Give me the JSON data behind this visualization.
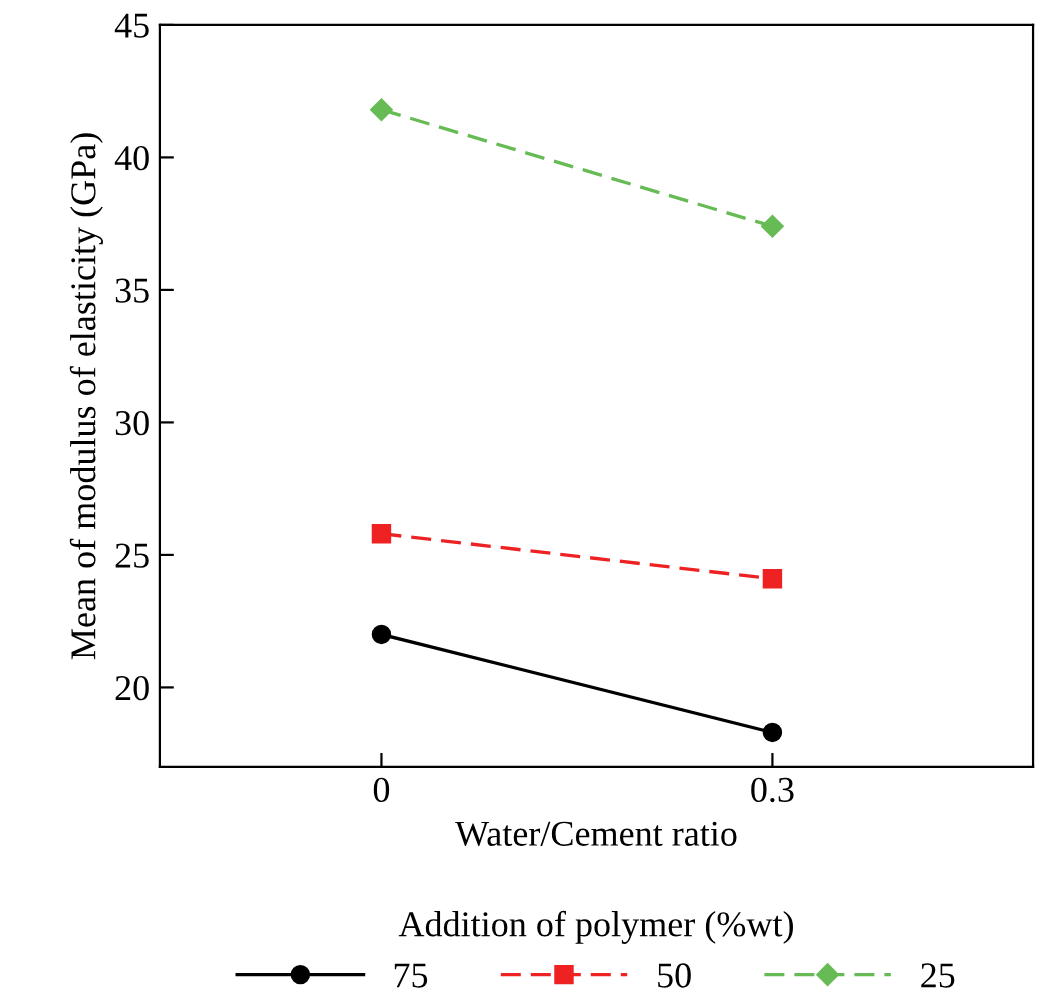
{
  "chart_data": {
    "type": "line",
    "xlabel": "Water/Cement ratio",
    "ylabel": "Mean of modulus of elasticity (GPa)",
    "legend_title": "Addition of polymer (%wt)",
    "x": [
      0,
      0.3
    ],
    "xlim": [
      -0.17,
      0.5
    ],
    "xticks": [
      0,
      0.3
    ],
    "ylim": [
      17,
      45
    ],
    "yticks": [
      20,
      25,
      30,
      35,
      40,
      45
    ],
    "grid": false,
    "legend": "bottom",
    "series": [
      {
        "name": "75",
        "color": "#000000",
        "values": [
          22.0,
          18.3
        ],
        "marker": "circle",
        "line_style": "solid"
      },
      {
        "name": "50",
        "color": "#ee2222",
        "values": [
          25.8,
          24.1
        ],
        "marker": "square",
        "line_style": "dashed"
      },
      {
        "name": "25",
        "color": "#66bb55",
        "values": [
          41.8,
          37.4
        ],
        "marker": "diamond",
        "line_style": "dashed"
      }
    ]
  }
}
